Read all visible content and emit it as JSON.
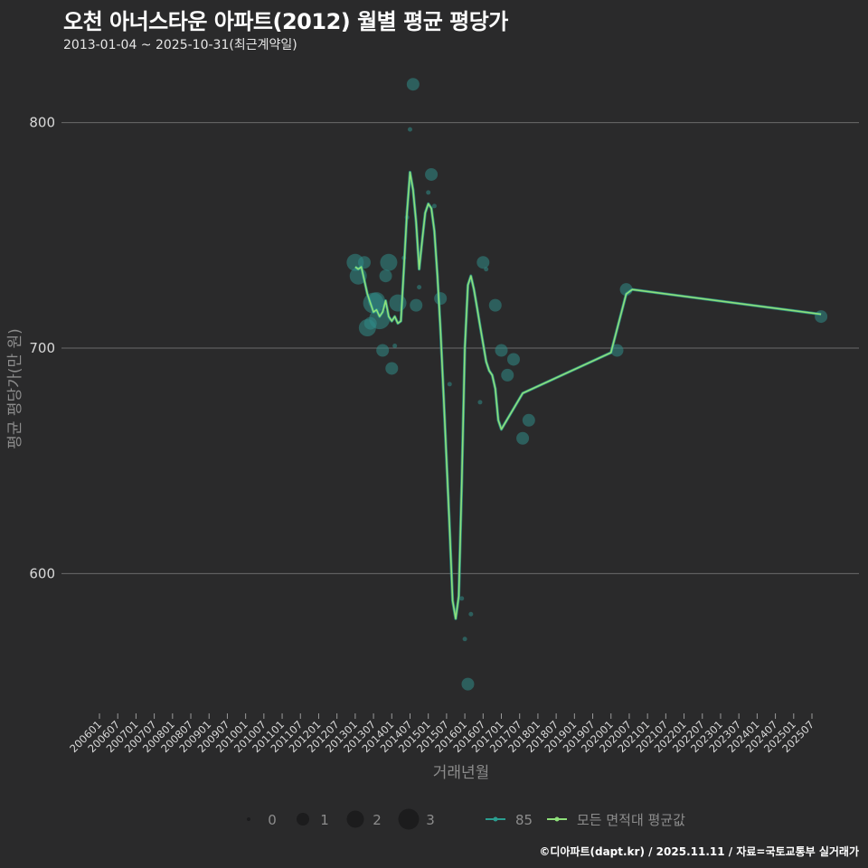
{
  "header": {
    "title": "오천 아너스타운 아파트(2012) 월별 평균 평당가",
    "subtitle": "2013-01-04 ~ 2025-10-31(최근계약일)"
  },
  "footer": {
    "credit": "©디아파트(dapt.kr) / 2025.11.11 / 자료=국토교통부 실거래가"
  },
  "colors": {
    "background": "#2a2a2b",
    "grid": "#6b6b6b",
    "series85": "#2a9d8f",
    "avg": "#8ee07a",
    "bubble": "#2f8a86"
  },
  "chart_data": {
    "type": "line",
    "title": "오천 아너스타운 아파트(2012) 월별 평균 평당가",
    "subtitle": "2013-01-04 ~ 2025-10-31(최근계약일)",
    "xlabel": "거래년월",
    "ylabel": "평균 평당가(만 원)",
    "ylim": [
      544,
      820
    ],
    "yticks": [
      600,
      700,
      800
    ],
    "grid": true,
    "xticks": [
      "200601",
      "200607",
      "200701",
      "200707",
      "200801",
      "200807",
      "200901",
      "200907",
      "201001",
      "201007",
      "201101",
      "201107",
      "201201",
      "201207",
      "201301",
      "201307",
      "201401",
      "201407",
      "201501",
      "201507",
      "201601",
      "201607",
      "201701",
      "201707",
      "201801",
      "201807",
      "201901",
      "201907",
      "202001",
      "202007",
      "202101",
      "202107",
      "202201",
      "202207",
      "202301",
      "202307",
      "202401",
      "202407",
      "202501",
      "202507"
    ],
    "legend": {
      "size_title": "",
      "sizes": [
        {
          "label": "0",
          "r": 2
        },
        {
          "label": "1",
          "r": 7
        },
        {
          "label": "2",
          "r": 9.5
        },
        {
          "label": "3",
          "r": 11.5
        }
      ],
      "lines": [
        {
          "label": "85",
          "color": "#2a9d8f"
        },
        {
          "label": "모든 면적대 평균값",
          "color": "#8ee07a"
        }
      ],
      "position": "bottom"
    },
    "series": [
      {
        "name": "85",
        "type": "scatter-bubble",
        "points": [
          {
            "x": "201301",
            "y": 738,
            "size": 2
          },
          {
            "x": "201302",
            "y": 732,
            "size": 2
          },
          {
            "x": "201304",
            "y": 738,
            "size": 1
          },
          {
            "x": "201305",
            "y": 709,
            "size": 2
          },
          {
            "x": "201306",
            "y": 711,
            "size": 1
          },
          {
            "x": "201307",
            "y": 720,
            "size": 3
          },
          {
            "x": "201308",
            "y": 721,
            "size": 2
          },
          {
            "x": "201309",
            "y": 713,
            "size": 3
          },
          {
            "x": "201310",
            "y": 699,
            "size": 1
          },
          {
            "x": "201311",
            "y": 732,
            "size": 1
          },
          {
            "x": "201312",
            "y": 738,
            "size": 2
          },
          {
            "x": "201401",
            "y": 691,
            "size": 1
          },
          {
            "x": "201402",
            "y": 701,
            "size": 0
          },
          {
            "x": "201403",
            "y": 720,
            "size": 2
          },
          {
            "x": "201405",
            "y": 740,
            "size": 0
          },
          {
            "x": "201406",
            "y": 758,
            "size": 0
          },
          {
            "x": "201407",
            "y": 797,
            "size": 0
          },
          {
            "x": "201408",
            "y": 817,
            "size": 1
          },
          {
            "x": "201409",
            "y": 719,
            "size": 1
          },
          {
            "x": "201410",
            "y": 727,
            "size": 0
          },
          {
            "x": "201501",
            "y": 769,
            "size": 0
          },
          {
            "x": "201502",
            "y": 777,
            "size": 1
          },
          {
            "x": "201503",
            "y": 763,
            "size": 0
          },
          {
            "x": "201505",
            "y": 722,
            "size": 1
          },
          {
            "x": "201508",
            "y": 684,
            "size": 0
          },
          {
            "x": "201512",
            "y": 589,
            "size": 0
          },
          {
            "x": "201601",
            "y": 571,
            "size": 0
          },
          {
            "x": "201602",
            "y": 551,
            "size": 1
          },
          {
            "x": "201603",
            "y": 582,
            "size": 0
          },
          {
            "x": "201606",
            "y": 676,
            "size": 0
          },
          {
            "x": "201607",
            "y": 738,
            "size": 1
          },
          {
            "x": "201608",
            "y": 735,
            "size": 0
          },
          {
            "x": "201611",
            "y": 719,
            "size": 1
          },
          {
            "x": "201701",
            "y": 699,
            "size": 1
          },
          {
            "x": "201703",
            "y": 688,
            "size": 1
          },
          {
            "x": "201705",
            "y": 695,
            "size": 1
          },
          {
            "x": "201708",
            "y": 660,
            "size": 1
          },
          {
            "x": "201710",
            "y": 668,
            "size": 1
          },
          {
            "x": "202003",
            "y": 699,
            "size": 1
          },
          {
            "x": "202006",
            "y": 726,
            "size": 1
          },
          {
            "x": "202510",
            "y": 714,
            "size": 1
          }
        ]
      },
      {
        "name": "모든 면적대 평균값",
        "type": "line",
        "points": [
          {
            "x": "201301",
            "y": 736
          },
          {
            "x": "201302",
            "y": 735
          },
          {
            "x": "201303",
            "y": 736
          },
          {
            "x": "201304",
            "y": 730
          },
          {
            "x": "201305",
            "y": 724
          },
          {
            "x": "201306",
            "y": 720
          },
          {
            "x": "201307",
            "y": 716
          },
          {
            "x": "201308",
            "y": 717
          },
          {
            "x": "201309",
            "y": 714
          },
          {
            "x": "201310",
            "y": 716
          },
          {
            "x": "201311",
            "y": 721
          },
          {
            "x": "201312",
            "y": 714
          },
          {
            "x": "201401",
            "y": 712
          },
          {
            "x": "201402",
            "y": 714
          },
          {
            "x": "201403",
            "y": 711
          },
          {
            "x": "201404",
            "y": 712
          },
          {
            "x": "201405",
            "y": 736
          },
          {
            "x": "201406",
            "y": 760
          },
          {
            "x": "201407",
            "y": 778
          },
          {
            "x": "201408",
            "y": 770
          },
          {
            "x": "201409",
            "y": 756
          },
          {
            "x": "201410",
            "y": 735
          },
          {
            "x": "201411",
            "y": 748
          },
          {
            "x": "201412",
            "y": 760
          },
          {
            "x": "201501",
            "y": 764
          },
          {
            "x": "201502",
            "y": 762
          },
          {
            "x": "201503",
            "y": 752
          },
          {
            "x": "201504",
            "y": 732
          },
          {
            "x": "201505",
            "y": 708
          },
          {
            "x": "201506",
            "y": 680
          },
          {
            "x": "201507",
            "y": 650
          },
          {
            "x": "201508",
            "y": 620
          },
          {
            "x": "201509",
            "y": 588
          },
          {
            "x": "201510",
            "y": 580
          },
          {
            "x": "201511",
            "y": 590
          },
          {
            "x": "201512",
            "y": 640
          },
          {
            "x": "201601",
            "y": 700
          },
          {
            "x": "201602",
            "y": 728
          },
          {
            "x": "201603",
            "y": 732
          },
          {
            "x": "201604",
            "y": 726
          },
          {
            "x": "201605",
            "y": 718
          },
          {
            "x": "201606",
            "y": 710
          },
          {
            "x": "201607",
            "y": 702
          },
          {
            "x": "201608",
            "y": 694
          },
          {
            "x": "201609",
            "y": 690
          },
          {
            "x": "201610",
            "y": 688
          },
          {
            "x": "201611",
            "y": 682
          },
          {
            "x": "201612",
            "y": 668
          },
          {
            "x": "201701",
            "y": 664
          },
          {
            "x": "201708",
            "y": 680
          },
          {
            "x": "202001",
            "y": 698
          },
          {
            "x": "202006",
            "y": 724
          },
          {
            "x": "202008",
            "y": 726
          },
          {
            "x": "202510",
            "y": 715
          }
        ]
      }
    ]
  }
}
